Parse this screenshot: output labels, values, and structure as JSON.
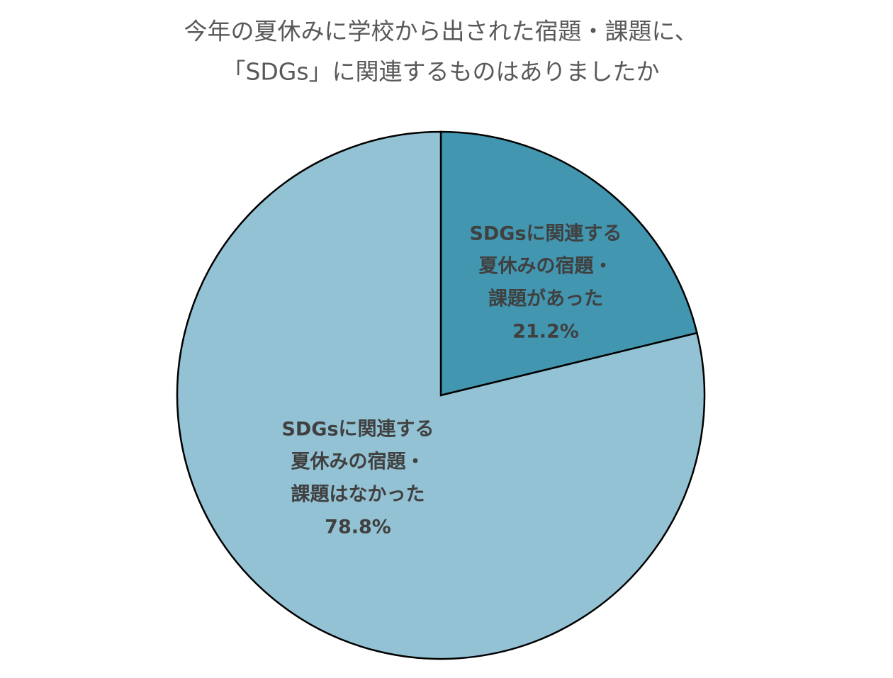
{
  "chart_data": {
    "type": "pie",
    "title": [
      "今年の夏休みに学校から出された宿題・課題に、",
      "「SDGs」に関連するものはありましたか"
    ],
    "categories": [
      [
        "SDGsに関連する",
        "夏休みの宿題・",
        "課題があった"
      ],
      [
        "SDGsに関連する",
        "夏休みの宿題・",
        "課題はなかった"
      ]
    ],
    "values": [
      21.2,
      78.8
    ],
    "value_labels": [
      "21.2%",
      "78.8%"
    ],
    "colors": [
      "#4296b0",
      "#93c2d4"
    ]
  }
}
